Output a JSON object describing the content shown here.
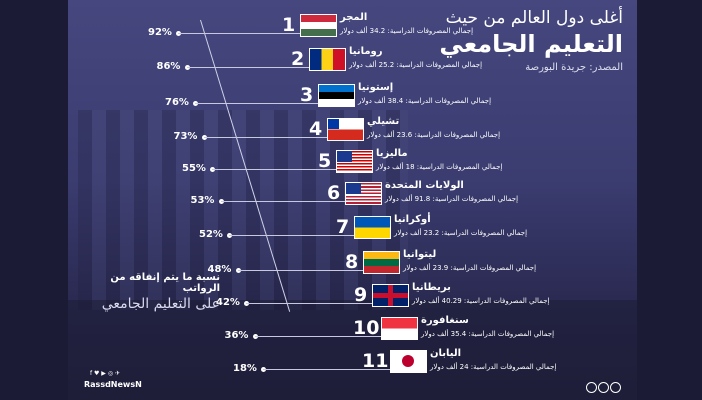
{
  "title": {
    "line1": "أغلى دول العالم من حيث",
    "line2": "التعليم الجامعي",
    "source": "المصدر: جريدة البورصة"
  },
  "side_caption": {
    "line1": "نسبة ما يتم إنفاقه من الرواتب",
    "line2": "على التعليم الجامعي"
  },
  "brand": {
    "handle": "RassdNewsN",
    "social": "f ♥ ▶ ◎ ✈"
  },
  "rows": [
    {
      "rank": "1",
      "country": "المجر",
      "cost": "إجمالي المصروفات الدراسية: 34.2 ألف دولار",
      "percent": "92%",
      "flag": "hungary"
    },
    {
      "rank": "2",
      "country": "رومانيا",
      "cost": "إجمالي المصروفات الدراسية: 25.2 ألف دولار",
      "percent": "86%",
      "flag": "romania"
    },
    {
      "rank": "3",
      "country": "إستونيا",
      "cost": "إجمالي المصروفات الدراسية: 38.4 ألف دولار",
      "percent": "76%",
      "flag": "estonia"
    },
    {
      "rank": "4",
      "country": "تشيلي",
      "cost": "إجمالي المصروفات الدراسية: 23.6 ألف دولار",
      "percent": "73%",
      "flag": "chile"
    },
    {
      "rank": "5",
      "country": "ماليزيا",
      "cost": "إجمالي المصروفات الدراسية: 18 ألف دولار",
      "percent": "55%",
      "flag": "malaysia"
    },
    {
      "rank": "6",
      "country": "الولايات المتحدة",
      "cost": "إجمالي المصروفات الدراسية: 91.8 ألف دولار",
      "percent": "53%",
      "flag": "usa"
    },
    {
      "rank": "7",
      "country": "أوكرانيا",
      "cost": "إجمالي المصروفات الدراسية: 23.2 ألف دولار",
      "percent": "52%",
      "flag": "ukraine"
    },
    {
      "rank": "8",
      "country": "ليتوانيا",
      "cost": "إجمالي المصروفات الدراسية: 23.9 ألف دولار",
      "percent": "48%",
      "flag": "lithuania"
    },
    {
      "rank": "9",
      "country": "بريطانيا",
      "cost": "إجمالي المصروفات الدراسية: 40.29 ألف دولار",
      "percent": "42%",
      "flag": "uk"
    },
    {
      "rank": "10",
      "country": "سنغافورة",
      "cost": "إجمالي المصروفات الدراسية: 35.4 ألف دولار",
      "percent": "36%",
      "flag": "singapore"
    },
    {
      "rank": "11",
      "country": "اليابان",
      "cost": "إجمالي المصروفات الدراسية: 24 ألف دولار",
      "percent": "18%",
      "flag": "japan"
    }
  ]
}
